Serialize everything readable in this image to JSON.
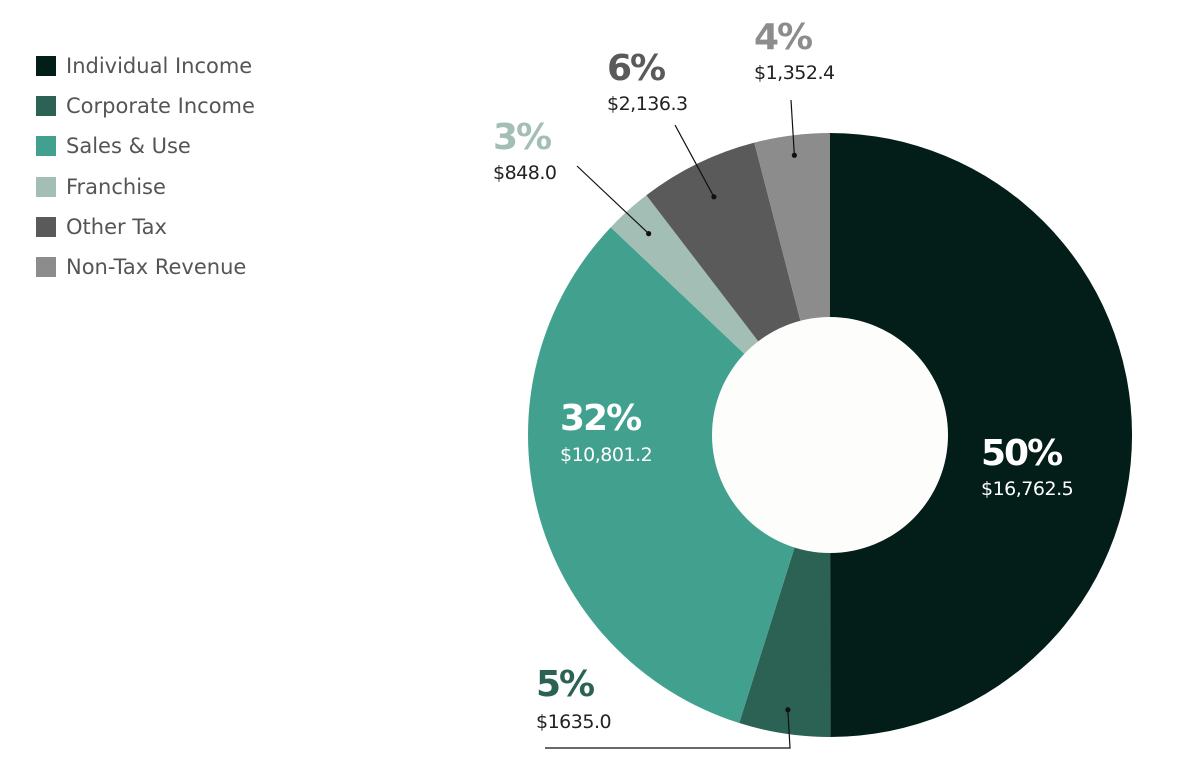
{
  "chart_data": {
    "type": "pie",
    "donut": true,
    "legend_position": "top-left",
    "categories": [
      "Individual Income",
      "Corporate Income",
      "Sales & Use",
      "Franchise",
      "Other Tax",
      "Non-Tax Revenue"
    ],
    "values": [
      16762.5,
      1635.0,
      10801.2,
      848.0,
      2136.3,
      1352.4
    ],
    "percent_labels": [
      "50%",
      "5%",
      "32%",
      "3%",
      "6%",
      "4%"
    ],
    "value_labels": [
      "$16,762.5",
      "$1635.0",
      "$10,801.2",
      "$848.0",
      "$2,136.3",
      "$1,352.4"
    ],
    "colors": [
      "#031d19",
      "#2c6254",
      "#42a18e",
      "#a3beb4",
      "#5a5a5a",
      "#8c8c8c"
    ],
    "label_colors": [
      "#ffffff",
      "#2c6254",
      "#ffffff",
      "#a3beb4",
      "#5a5a5a",
      "#8c8c8c"
    ],
    "label_amount_colors": [
      "#ffffff",
      "#222222",
      "#ffffff",
      "#222222",
      "#222222",
      "#222222"
    ]
  }
}
